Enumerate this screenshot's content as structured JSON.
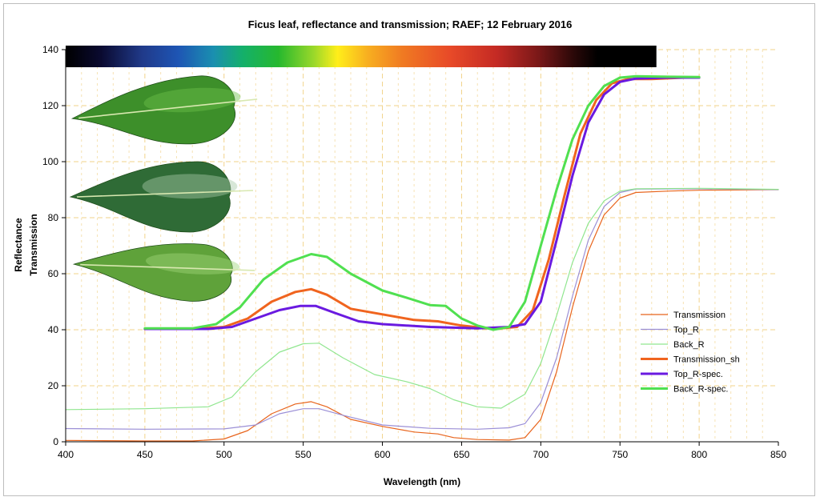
{
  "chart_data": {
    "type": "line",
    "title": "Ficus leaf, reflectance and transmission; RAEF; 12 February 2016",
    "xlabel": "Wavelength (nm)",
    "ylabel_lines": [
      "Reflectance",
      "Transmission"
    ],
    "xlim": [
      400,
      850
    ],
    "ylim": [
      0,
      140
    ],
    "x_ticks": [
      400,
      450,
      500,
      550,
      600,
      650,
      700,
      750,
      800,
      850
    ],
    "y_ticks": [
      0,
      20,
      40,
      60,
      80,
      100,
      120,
      140
    ],
    "grid": true,
    "legend_position": "lower-right",
    "spectrum_bar_range": [
      400,
      773
    ],
    "series": [
      {
        "name": "Transmission",
        "color": "#e8641c",
        "width": "thin",
        "points": [
          [
            400,
            0.5
          ],
          [
            450,
            0.3
          ],
          [
            480,
            0.3
          ],
          [
            500,
            1
          ],
          [
            515,
            4
          ],
          [
            530,
            10
          ],
          [
            545,
            13.5
          ],
          [
            555,
            14.3
          ],
          [
            565,
            12.5
          ],
          [
            580,
            8
          ],
          [
            600,
            5.5
          ],
          [
            620,
            3.5
          ],
          [
            635,
            2.8
          ],
          [
            645,
            1.5
          ],
          [
            660,
            0.8
          ],
          [
            680,
            0.6
          ],
          [
            690,
            1.5
          ],
          [
            700,
            8
          ],
          [
            710,
            25
          ],
          [
            720,
            48
          ],
          [
            730,
            68
          ],
          [
            740,
            81
          ],
          [
            750,
            87
          ],
          [
            760,
            89
          ],
          [
            780,
            89.5
          ],
          [
            800,
            89.8
          ],
          [
            850,
            90
          ]
        ]
      },
      {
        "name": "Top_R",
        "color": "#9b8fd6",
        "width": "thin",
        "points": [
          [
            400,
            4.7
          ],
          [
            450,
            4.5
          ],
          [
            500,
            4.6
          ],
          [
            520,
            6
          ],
          [
            535,
            10
          ],
          [
            550,
            11.8
          ],
          [
            560,
            11.8
          ],
          [
            575,
            9.5
          ],
          [
            600,
            6
          ],
          [
            630,
            4.8
          ],
          [
            660,
            4.5
          ],
          [
            680,
            5
          ],
          [
            690,
            6.5
          ],
          [
            700,
            14
          ],
          [
            710,
            30
          ],
          [
            720,
            52
          ],
          [
            730,
            72
          ],
          [
            740,
            84
          ],
          [
            750,
            89
          ],
          [
            760,
            90.2
          ],
          [
            800,
            90.3
          ],
          [
            850,
            90
          ]
        ]
      },
      {
        "name": "Back_R",
        "color": "#90e68f",
        "width": "thin",
        "points": [
          [
            400,
            11.5
          ],
          [
            450,
            11.8
          ],
          [
            490,
            12.5
          ],
          [
            505,
            16
          ],
          [
            520,
            25
          ],
          [
            535,
            32
          ],
          [
            550,
            35
          ],
          [
            560,
            35.2
          ],
          [
            575,
            30
          ],
          [
            595,
            24
          ],
          [
            615,
            21.5
          ],
          [
            630,
            19
          ],
          [
            645,
            15
          ],
          [
            660,
            12.5
          ],
          [
            675,
            12
          ],
          [
            690,
            17
          ],
          [
            700,
            28
          ],
          [
            710,
            45
          ],
          [
            720,
            64
          ],
          [
            730,
            78
          ],
          [
            740,
            86
          ],
          [
            750,
            89.5
          ],
          [
            760,
            90.3
          ],
          [
            800,
            90.5
          ],
          [
            850,
            90.1
          ]
        ]
      },
      {
        "name": "Transmission_sh",
        "color": "#f0641e",
        "width": "thick",
        "points": [
          [
            450,
            40.3
          ],
          [
            480,
            40.3
          ],
          [
            500,
            41
          ],
          [
            515,
            44
          ],
          [
            530,
            50
          ],
          [
            545,
            53.5
          ],
          [
            555,
            54.5
          ],
          [
            565,
            52.5
          ],
          [
            580,
            47.5
          ],
          [
            600,
            45.5
          ],
          [
            620,
            43.5
          ],
          [
            635,
            43
          ],
          [
            650,
            41.5
          ],
          [
            670,
            40.3
          ],
          [
            685,
            41
          ],
          [
            695,
            47
          ],
          [
            705,
            65
          ],
          [
            715,
            88
          ],
          [
            725,
            110
          ],
          [
            735,
            122
          ],
          [
            745,
            128
          ],
          [
            755,
            129.5
          ],
          [
            770,
            129.5
          ],
          [
            790,
            130
          ],
          [
            800,
            130
          ]
        ]
      },
      {
        "name": "Top_R-spec.",
        "color": "#6a1ae0",
        "width": "thick",
        "points": [
          [
            450,
            40.3
          ],
          [
            490,
            40.3
          ],
          [
            505,
            41
          ],
          [
            520,
            44
          ],
          [
            535,
            47
          ],
          [
            548,
            48.5
          ],
          [
            558,
            48.5
          ],
          [
            570,
            46
          ],
          [
            585,
            43
          ],
          [
            600,
            42
          ],
          [
            630,
            41
          ],
          [
            660,
            40.5
          ],
          [
            680,
            41
          ],
          [
            690,
            42
          ],
          [
            700,
            50
          ],
          [
            710,
            72
          ],
          [
            720,
            95
          ],
          [
            730,
            114
          ],
          [
            740,
            124
          ],
          [
            750,
            128.5
          ],
          [
            760,
            129.7
          ],
          [
            780,
            130
          ],
          [
            800,
            130
          ]
        ]
      },
      {
        "name": "Back_R-spec.",
        "color": "#50e050",
        "width": "thick",
        "points": [
          [
            450,
            40.5
          ],
          [
            480,
            40.5
          ],
          [
            495,
            42
          ],
          [
            510,
            48
          ],
          [
            525,
            58
          ],
          [
            540,
            64
          ],
          [
            555,
            67
          ],
          [
            565,
            66
          ],
          [
            580,
            60
          ],
          [
            600,
            54
          ],
          [
            615,
            51.5
          ],
          [
            630,
            48.8
          ],
          [
            640,
            48.5
          ],
          [
            650,
            44
          ],
          [
            660,
            41.5
          ],
          [
            670,
            40
          ],
          [
            680,
            41
          ],
          [
            690,
            50
          ],
          [
            700,
            70
          ],
          [
            710,
            90
          ],
          [
            720,
            108
          ],
          [
            730,
            120
          ],
          [
            740,
            127
          ],
          [
            750,
            130
          ],
          [
            760,
            130.5
          ],
          [
            780,
            130.3
          ],
          [
            800,
            130.2
          ]
        ]
      }
    ]
  },
  "leaf_images": [
    {
      "name": "ficus-leaf-top",
      "color": "#3d8f2a",
      "highlight": "#6cc24a"
    },
    {
      "name": "ficus-leaf-specular",
      "color": "#2f6b36",
      "highlight": "#a8c9a8"
    },
    {
      "name": "ficus-leaf-back",
      "color": "#5fa23a",
      "highlight": "#9fd47a"
    }
  ]
}
